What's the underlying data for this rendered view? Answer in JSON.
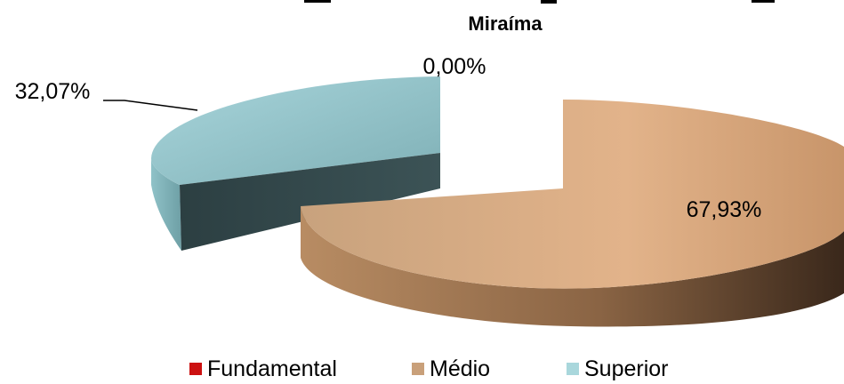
{
  "chart_data": {
    "type": "pie",
    "title_visible": "Miraíma",
    "categories": [
      "Fundamental",
      "Médio",
      "Superior"
    ],
    "values": [
      0.0,
      67.93,
      32.07
    ],
    "data_labels": [
      "0,00%",
      "67,93%",
      "32,07%"
    ],
    "colors": [
      "#cc1111",
      "#d6a77a",
      "#9fd0d6"
    ],
    "legend_position": "bottom",
    "style": "3d-exploded"
  },
  "legend": {
    "items": [
      {
        "label": "Fundamental",
        "color": "#cc1111"
      },
      {
        "label": "Médio",
        "color": "#c9a07a"
      },
      {
        "label": "Superior",
        "color": "#a9d7dc"
      }
    ]
  }
}
